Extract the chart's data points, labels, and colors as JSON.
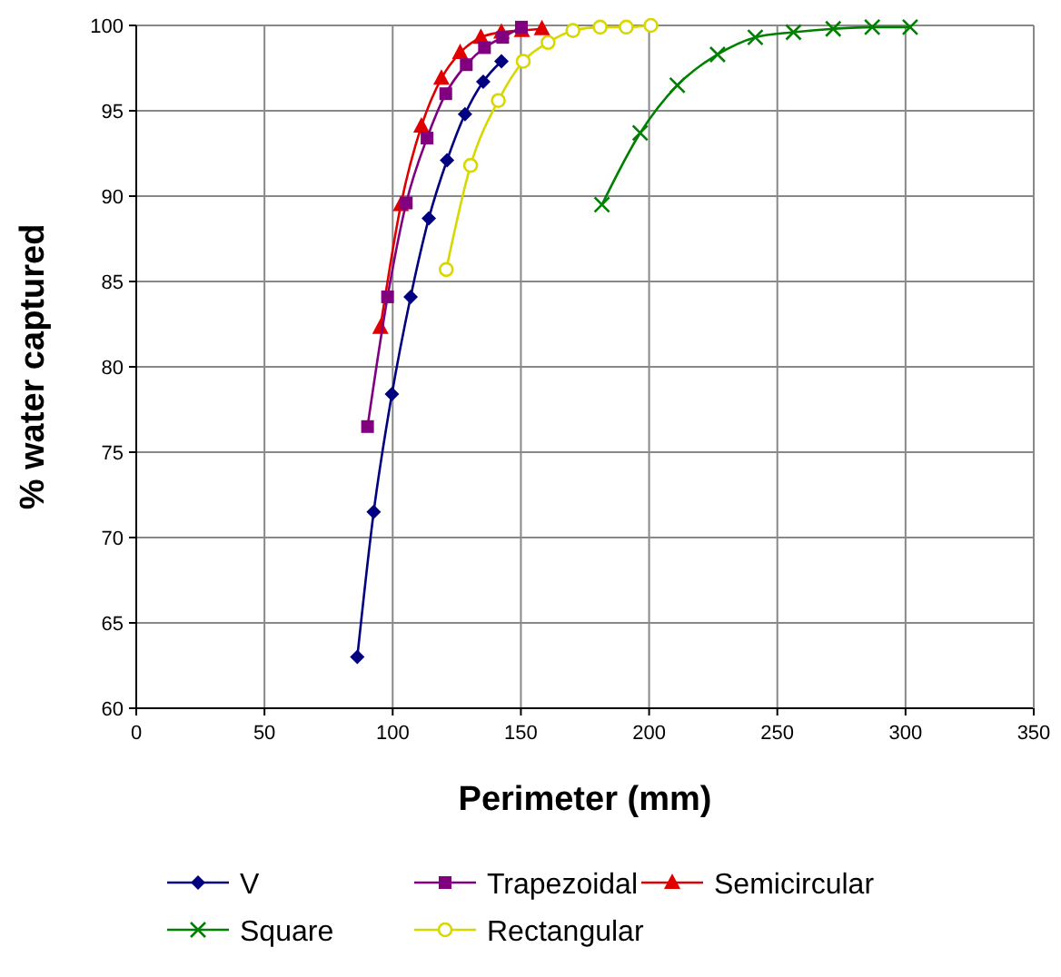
{
  "chart_data": {
    "type": "line",
    "xlabel": "Perimeter (mm)",
    "ylabel": "% water captured",
    "xlim": [
      0,
      350
    ],
    "xticks": [
      0,
      50,
      100,
      150,
      200,
      250,
      300,
      350
    ],
    "ylim": [
      60,
      100
    ],
    "yticks": [
      60,
      65,
      70,
      75,
      80,
      85,
      90,
      95,
      100
    ],
    "grid": true,
    "legend": "bottom",
    "series": [
      {
        "name": "V",
        "color": "#000080",
        "marker": "diamond",
        "x": [
          86.2,
          92.6,
          99.7,
          107.0,
          114.1,
          121.2,
          128.2,
          135.3,
          142.4
        ],
        "values": [
          63.0,
          71.5,
          78.4,
          84.1,
          88.7,
          92.1,
          94.8,
          96.7,
          97.9
        ]
      },
      {
        "name": "Trapezoidal",
        "color": "#800080",
        "marker": "square",
        "x": [
          90.2,
          98.0,
          105.3,
          113.4,
          120.7,
          128.7,
          135.8,
          142.9,
          150.2
        ],
        "values": [
          76.5,
          84.1,
          89.6,
          93.4,
          96.0,
          97.7,
          98.7,
          99.3,
          99.9
        ]
      },
      {
        "name": "Semicircular",
        "color": "#e00000",
        "marker": "triangle",
        "x": [
          95.2,
          103.2,
          111.2,
          119.0,
          126.3,
          134.4,
          142.4,
          150.4,
          158.2
        ],
        "values": [
          82.3,
          89.5,
          94.1,
          96.9,
          98.4,
          99.3,
          99.6,
          99.7,
          99.8
        ]
      },
      {
        "name": "Square",
        "color": "#008000",
        "marker": "cross",
        "x": [
          181.6,
          196.5,
          211.0,
          226.7,
          241.4,
          256.3,
          271.8,
          287.0,
          301.8
        ],
        "values": [
          89.5,
          93.7,
          96.5,
          98.3,
          99.3,
          99.6,
          99.8,
          99.9,
          99.9
        ]
      },
      {
        "name": "Rectangular",
        "color": "#d8d800",
        "marker": "circle",
        "x": [
          120.9,
          130.4,
          141.2,
          150.9,
          160.6,
          170.3,
          180.9,
          191.1,
          200.7
        ],
        "values": [
          85.7,
          91.8,
          95.6,
          97.9,
          99.0,
          99.7,
          99.9,
          99.9,
          100
        ]
      }
    ]
  }
}
